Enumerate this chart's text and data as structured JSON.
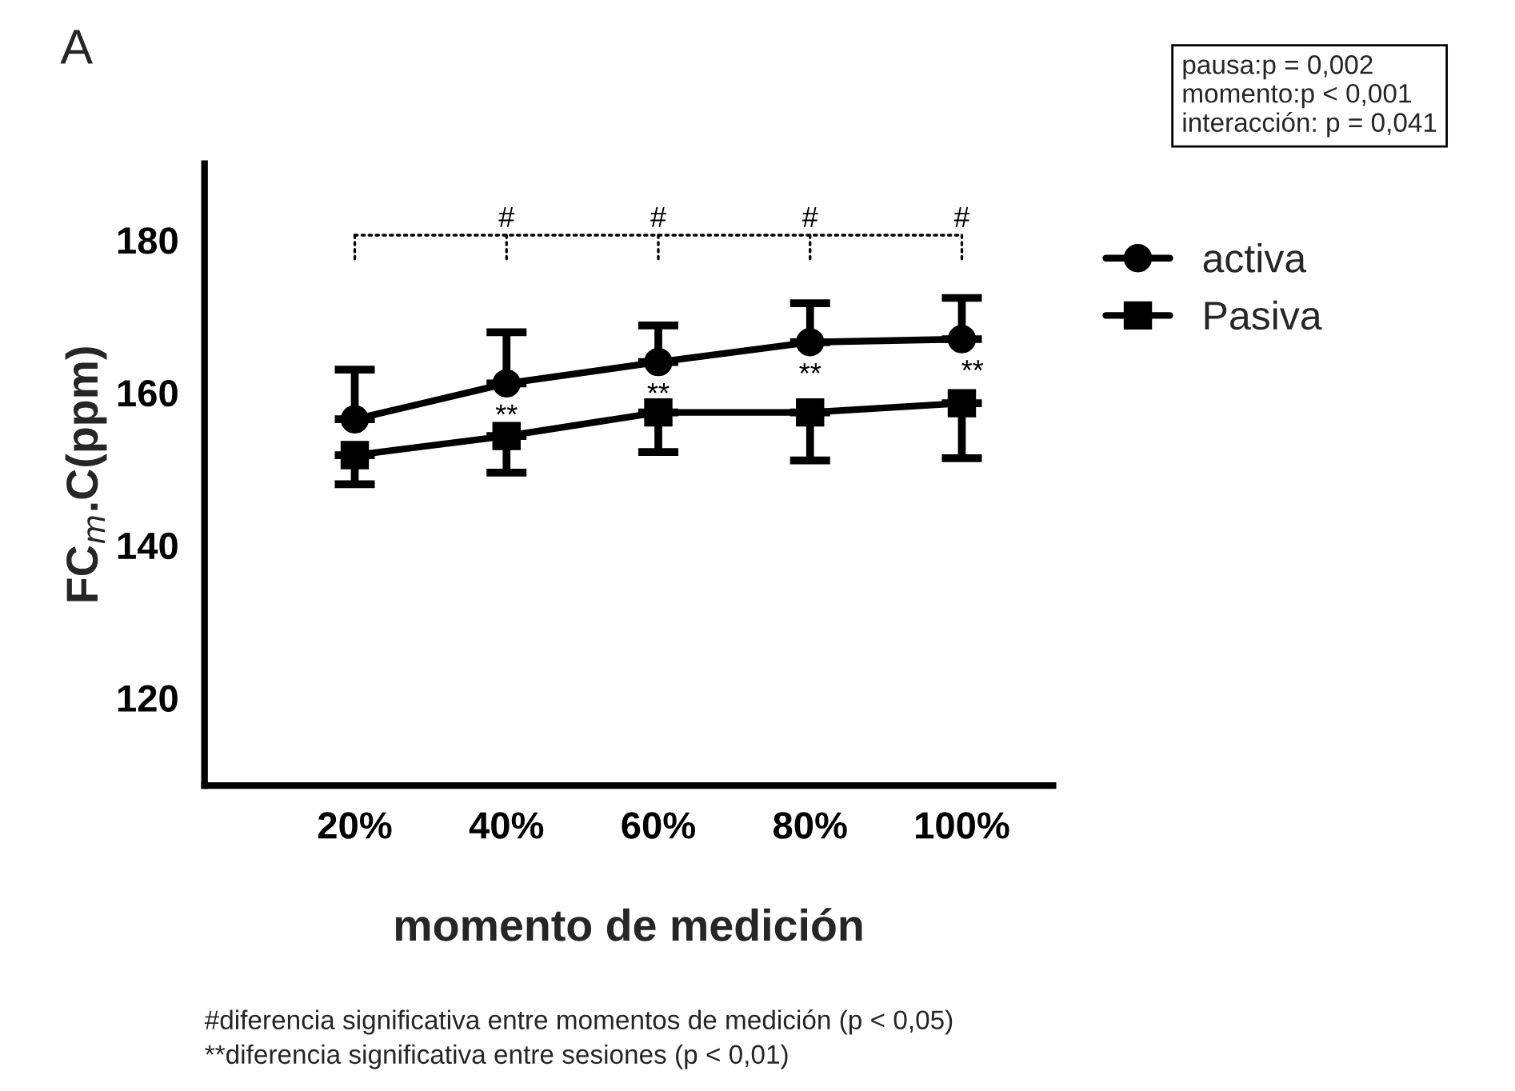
{
  "chart_data": {
    "type": "line",
    "title": "A",
    "xlabel": "momento de medición",
    "ylabel": "FC$_{m}$.C(ppm)",
    "categories": [
      "20%",
      "40%",
      "60%",
      "80%",
      "100%"
    ],
    "series": [
      {
        "name": "activa",
        "color": "#000000",
        "marker": "circle",
        "values": [
          156.5,
          161.2,
          164.0,
          166.6,
          167.0
        ],
        "errors": [
          [
            156.5,
            163.0
          ],
          [
            161.2,
            167.9
          ],
          [
            164.0,
            168.8
          ],
          [
            166.6,
            171.7
          ],
          [
            167.0,
            172.4
          ]
        ]
      },
      {
        "name": "Pasiva",
        "color": "#000000",
        "marker": "square",
        "values": [
          151.8,
          154.3,
          157.4,
          157.4,
          158.6
        ],
        "errors": [
          [
            148.0,
            151.8
          ],
          [
            149.5,
            154.3
          ],
          [
            152.2,
            157.4
          ],
          [
            151.1,
            157.4
          ],
          [
            151.4,
            158.6
          ]
        ]
      }
    ],
    "ylim": [
      108.5,
      190
    ],
    "yticks": [
      120,
      140,
      160,
      180
    ],
    "grid": false,
    "legend": "top right",
    "annotations": [
      "#",
      "#",
      "#",
      "#",
      "**",
      "**",
      "**",
      "**",
      "pausa:p = 0,002\nmomento:p < 0,001\ninteracción: p = 0,041",
      "#diferencia significativa entre momentos de medición (p < 0,05)\n**diferencia significativa entre sesiones (p < 0,01)"
    ]
  }
}
